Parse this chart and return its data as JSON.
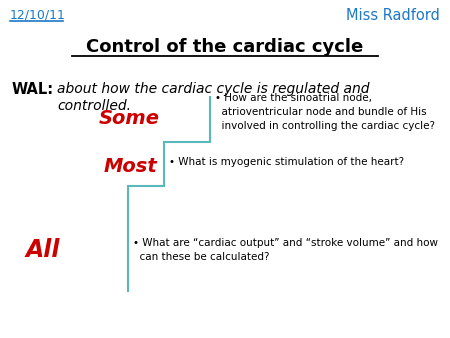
{
  "bg_color": "#ffffff",
  "date_text": "12/10/11",
  "date_color": "#1E78C8",
  "teacher_text": "Miss Radford",
  "teacher_color": "#1E78C8",
  "title_text": "Control of the cardiac cycle",
  "title_color": "#000000",
  "wal_label": "WAL:",
  "wal_label_color": "#000000",
  "wal_line1": "about how the cardiac cycle is regulated and",
  "wal_line2": "controlled.",
  "wal_text_color": "#000000",
  "some_text": "Some",
  "some_color": "#cc0000",
  "most_text": "Most",
  "most_color": "#cc0000",
  "all_text": "All",
  "all_color": "#cc0000",
  "some_bullet": "• How are the sinoatrial node,\n  atrioventricular node and bundle of His\n  involved in controlling the cardiac cycle?",
  "most_bullet": "• What is myogenic stimulation of the heart?",
  "all_bullet": "• What are “cardiac output” and “stroke volume” and how\n  can these be calculated?",
  "bullet_color": "#000000",
  "stair_color": "#5BB8B8",
  "fig_w": 4.5,
  "fig_h": 3.38,
  "dpi": 100
}
